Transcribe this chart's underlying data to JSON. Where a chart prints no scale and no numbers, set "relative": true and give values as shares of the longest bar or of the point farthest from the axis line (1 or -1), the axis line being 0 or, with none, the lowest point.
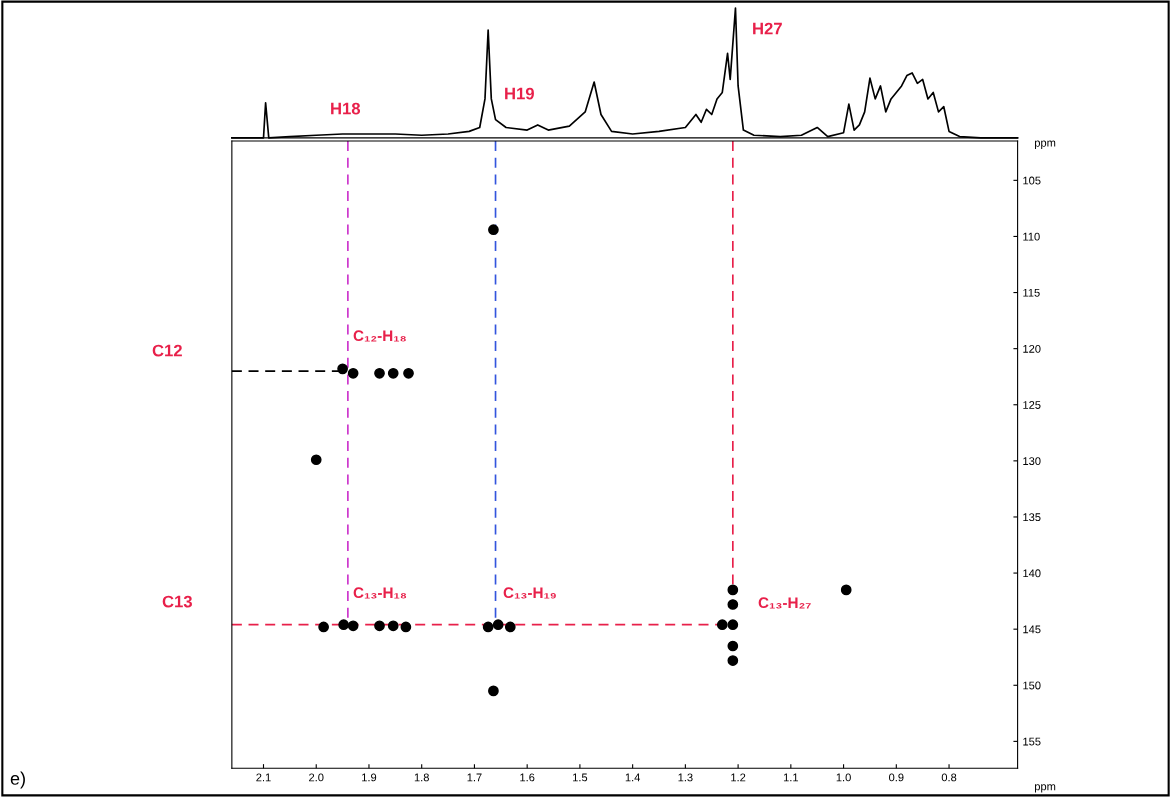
{
  "chart_data": [
    {
      "type": "line",
      "relative": true,
      "xlabel": "ppm",
      "xlim": [
        2.16,
        0.67
      ],
      "series": [
        {
          "color": "#000000",
          "x": [
            2.16,
            2.12,
            2.1,
            2.096,
            2.09,
            2.05,
            2.0,
            1.95,
            1.9,
            1.85,
            1.8,
            1.75,
            1.71,
            1.69,
            1.68,
            1.674,
            1.668,
            1.66,
            1.64,
            1.6,
            1.58,
            1.56,
            1.52,
            1.49,
            1.473,
            1.46,
            1.44,
            1.4,
            1.35,
            1.3,
            1.28,
            1.27,
            1.26,
            1.25,
            1.24,
            1.23,
            1.22,
            1.215,
            1.205,
            1.2,
            1.19,
            1.17,
            1.12,
            1.08,
            1.05,
            1.03,
            1.0,
            0.99,
            0.98,
            0.97,
            0.96,
            0.95,
            0.94,
            0.93,
            0.92,
            0.91,
            0.9,
            0.89,
            0.88,
            0.87,
            0.86,
            0.85,
            0.84,
            0.83,
            0.82,
            0.81,
            0.8,
            0.78,
            0.74,
            0.7,
            0.67
          ],
          "values": [
            0.0,
            0.0,
            0.0,
            0.27,
            0.0,
            0.01,
            0.02,
            0.03,
            0.03,
            0.03,
            0.02,
            0.03,
            0.05,
            0.08,
            0.3,
            0.83,
            0.3,
            0.14,
            0.08,
            0.06,
            0.1,
            0.06,
            0.09,
            0.2,
            0.43,
            0.18,
            0.05,
            0.03,
            0.05,
            0.08,
            0.18,
            0.12,
            0.22,
            0.18,
            0.3,
            0.35,
            0.65,
            0.45,
            1.0,
            0.4,
            0.06,
            0.02,
            0.01,
            0.02,
            0.08,
            0.01,
            0.04,
            0.26,
            0.06,
            0.1,
            0.2,
            0.46,
            0.3,
            0.4,
            0.2,
            0.3,
            0.35,
            0.4,
            0.48,
            0.5,
            0.42,
            0.45,
            0.3,
            0.35,
            0.2,
            0.24,
            0.05,
            0.01,
            0.0,
            0.0,
            0.0
          ]
        }
      ],
      "annotations": [
        "H18",
        "H19",
        "H27"
      ]
    },
    {
      "type": "scatter",
      "xlabel": "ppm",
      "xlim": [
        2.16,
        0.67
      ],
      "ylim": [
        157.4,
        101.5
      ],
      "xticks": [
        2.1,
        {
          "value": 2.0,
          "label": "2.0"
        },
        1.9,
        1.8,
        1.7,
        1.6,
        1.5,
        1.4,
        1.3,
        1.2,
        1.1,
        {
          "value": 1.0,
          "label": "1.0"
        },
        0.9,
        0.8
      ],
      "yticks": [
        105,
        110,
        115,
        120,
        125,
        130,
        135,
        140,
        145,
        150,
        155
      ],
      "series": [
        {
          "type": "line",
          "line_style": "dashed",
          "color": "#cc33cc",
          "x": [
            1.94,
            1.94
          ],
          "values": [
            101.5,
            144.5
          ]
        },
        {
          "type": "line",
          "line_style": "dashed",
          "color": "#3355dd",
          "x": [
            1.66,
            1.66
          ],
          "values": [
            101.5,
            144.5
          ]
        },
        {
          "type": "line",
          "line_style": "dashed",
          "color": "#e8204a",
          "x": [
            1.21,
            1.21
          ],
          "values": [
            101.5,
            141.0
          ]
        },
        {
          "type": "line",
          "line_style": "dashed",
          "color": "#000000",
          "x": [
            2.16,
            1.94
          ],
          "values": [
            122.0,
            122.0
          ]
        },
        {
          "type": "line",
          "line_style": "dashed",
          "color": "#e8204a",
          "x": [
            2.16,
            1.21
          ],
          "values": [
            144.6,
            144.6
          ]
        },
        {
          "type": "scatter",
          "marker": "circle",
          "color": "#000000",
          "x": [
            1.664,
            1.95,
            1.93,
            1.88,
            1.854,
            1.825,
            2.0,
            1.986,
            1.948,
            1.93,
            1.88,
            1.854,
            1.83,
            1.674,
            1.655,
            1.632,
            1.23,
            1.21,
            1.21,
            1.21,
            1.21,
            1.21,
            0.995,
            1.664
          ],
          "values": [
            109.4,
            121.8,
            122.2,
            122.2,
            122.2,
            122.2,
            129.9,
            144.8,
            144.6,
            144.7,
            144.7,
            144.7,
            144.8,
            144.8,
            144.6,
            144.8,
            144.6,
            144.6,
            141.5,
            142.8,
            146.5,
            147.8,
            141.5,
            150.5
          ]
        }
      ],
      "annotations": [
        "C₁₂-H₁₈",
        "C₁₃-H₁₈",
        "C₁₃-H₁₉",
        "C₁₃-H₂₇",
        "C12",
        "C13",
        "e)"
      ]
    }
  ]
}
